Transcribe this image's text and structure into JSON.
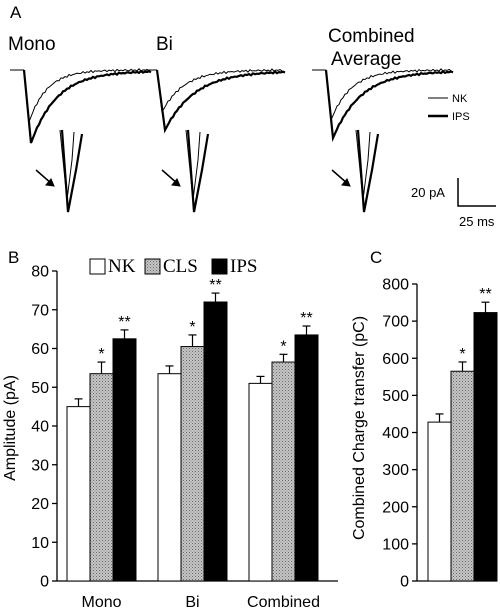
{
  "panel_a": {
    "letter": "A",
    "titles": [
      "Mono",
      "Bi",
      "Combined",
      "Average"
    ],
    "legend": [
      "NK",
      "IPS"
    ],
    "scale": {
      "amplitude": "20 pA",
      "time": "25 ms"
    }
  },
  "chart_data": [
    {
      "type": "bar",
      "panel": "B",
      "ylabel": "Amplitude (pA)",
      "xlabel": "",
      "ylim": [
        0,
        80
      ],
      "yticks": [
        0,
        10,
        20,
        30,
        40,
        50,
        60,
        70,
        80
      ],
      "categories": [
        "Mono",
        "Bi",
        "Combined"
      ],
      "legend_position": "top",
      "series": [
        {
          "name": "NK",
          "fill": "#ffffff",
          "values": [
            45,
            53.5,
            51
          ],
          "errors": [
            2,
            2,
            1.8
          ],
          "sig": [
            "",
            "",
            ""
          ]
        },
        {
          "name": "CLS",
          "fill": "#b0b0b0",
          "values": [
            53.5,
            60.5,
            56.5
          ],
          "errors": [
            3,
            3,
            2
          ],
          "sig": [
            "*",
            "*",
            "*"
          ]
        },
        {
          "name": "IPS",
          "fill": "#000000",
          "values": [
            62.5,
            72,
            63.5
          ],
          "errors": [
            2.3,
            2.3,
            2.3
          ],
          "sig": [
            "**",
            "**",
            "**"
          ]
        }
      ]
    },
    {
      "type": "bar",
      "panel": "C",
      "ylabel": "Combined Charge transfer (pC)",
      "xlabel": "",
      "ylim": [
        0,
        800
      ],
      "yticks": [
        0,
        100,
        200,
        300,
        400,
        500,
        600,
        700,
        800
      ],
      "categories": [
        ""
      ],
      "series": [
        {
          "name": "NK",
          "fill": "#ffffff",
          "values": [
            428
          ],
          "errors": [
            22
          ],
          "sig": [
            ""
          ]
        },
        {
          "name": "CLS",
          "fill": "#b0b0b0",
          "values": [
            565
          ],
          "errors": [
            25
          ],
          "sig": [
            "*"
          ]
        },
        {
          "name": "IPS",
          "fill": "#000000",
          "values": [
            723
          ],
          "errors": [
            28
          ],
          "sig": [
            "**"
          ]
        }
      ]
    }
  ]
}
